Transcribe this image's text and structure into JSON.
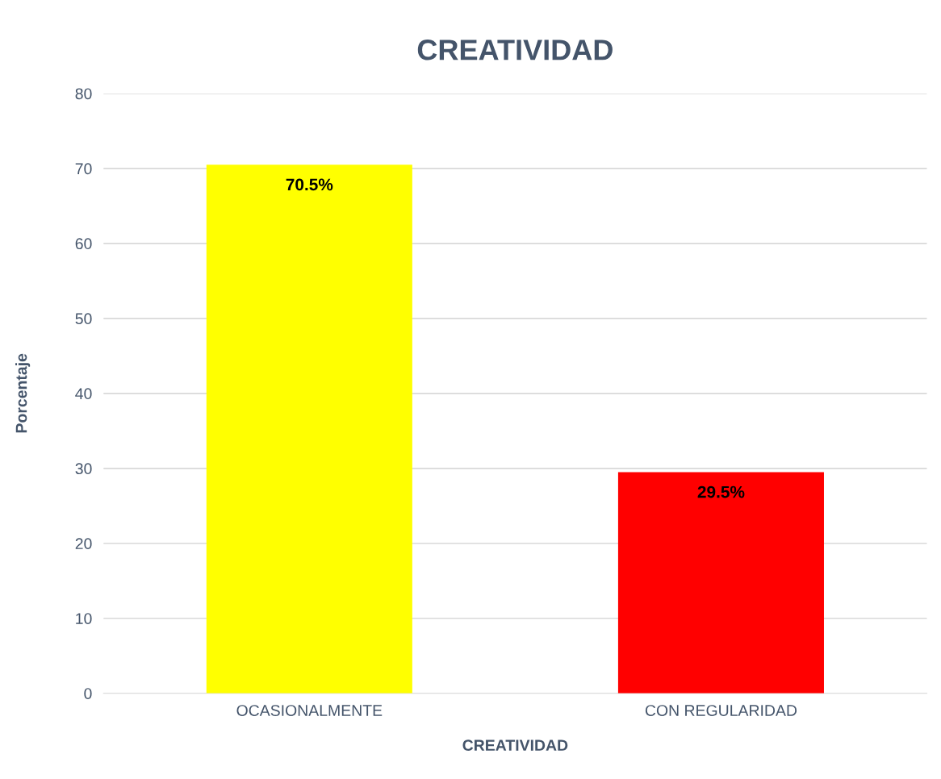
{
  "chart_data": {
    "type": "bar",
    "title": "CREATIVIDAD",
    "xlabel": "CREATIVIDAD",
    "ylabel": "Porcentaje",
    "categories": [
      "OCASIONALMENTE",
      "CON REGULARIDAD"
    ],
    "values": [
      70.5,
      29.5
    ],
    "colors": [
      "#ffff00",
      "#ff0000"
    ],
    "value_labels": [
      "70.5%",
      "29.5%"
    ],
    "ylim": [
      0,
      80
    ],
    "yticks": [
      0,
      10,
      20,
      30,
      40,
      50,
      60,
      70,
      80
    ],
    "grid": "y",
    "legend": false
  }
}
